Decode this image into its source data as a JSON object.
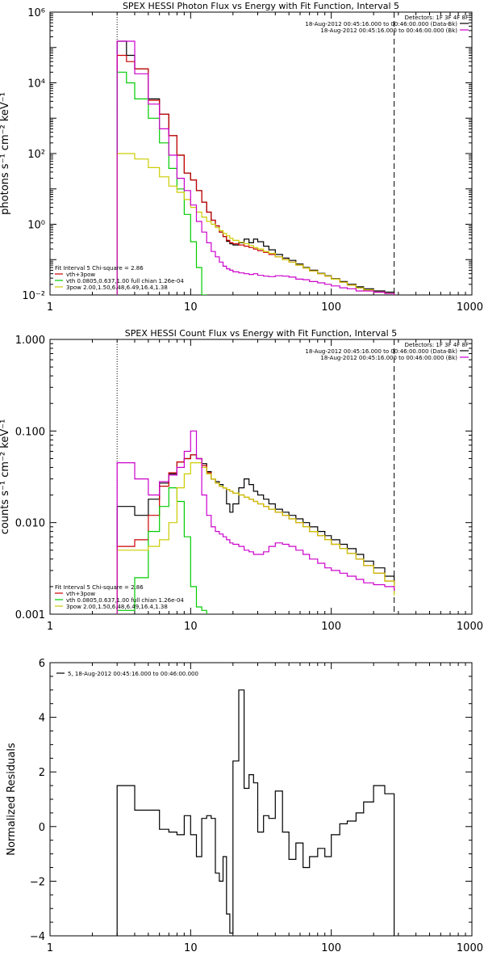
{
  "chart_data": [
    {
      "type": "line",
      "title": "SPEX HESSI Photon Flux vs Energy with Fit Function, Interval 5",
      "ylabel": "photons s⁻¹ cm⁻² keV⁻¹",
      "xscale": "log",
      "yscale": "log",
      "xlim": [
        1,
        1000
      ],
      "ylim": [
        0.01,
        1000000
      ],
      "xticks": [
        {
          "v": 1,
          "label": "1"
        },
        {
          "v": 10,
          "label": "10"
        },
        {
          "v": 100,
          "label": "100"
        },
        {
          "v": 1000,
          "label": "1000"
        }
      ],
      "yticks": [
        {
          "v": 0.01,
          "label": "10⁻²"
        },
        {
          "v": 1,
          "label": "10⁰"
        },
        {
          "v": 100,
          "label": "10²"
        },
        {
          "v": 10000,
          "label": "10⁴"
        },
        {
          "v": 1000000,
          "label": "10⁶"
        }
      ],
      "vlines": [
        {
          "x": 3,
          "style": "dotted"
        },
        {
          "x": 280,
          "style": "dashed"
        }
      ],
      "legend_top": {
        "placement": "top-right",
        "header": "Detectors: 1F 3F 4F 8F",
        "entries": [
          {
            "text": "18-Aug-2012 00:45:16.000 to 00:46:00.000 (Data-Bk)",
            "color": "#000000"
          },
          {
            "text": "18-Aug-2012 00:45:16.000 to 00:46:00.000 (Bk)",
            "color": "#cc00cc"
          }
        ]
      },
      "legend_bottom": {
        "placement": "bottom-left",
        "header": "Fit Interval 5   Chi-square = 2.86",
        "entries": [
          {
            "text": "vth+3pow",
            "color": "#cc0000"
          },
          {
            "text": "vth 0.0805,0.637,1.00  full chian 1.26e-04",
            "color": "#00cc00"
          },
          {
            "text": "3pow 2.00,1.50,6.48,6.49,16.4,1.38",
            "color": "#cccc00"
          }
        ]
      },
      "series": [
        {
          "color": "#000000",
          "edges": [
            3,
            3.5,
            4,
            5,
            6,
            7,
            8,
            9,
            10,
            11,
            12,
            13,
            14,
            15,
            16,
            17,
            18,
            19,
            20,
            22,
            24,
            26,
            28,
            30,
            33,
            36,
            40,
            45,
            50,
            56,
            63,
            70,
            80,
            90,
            100,
            115,
            130,
            150,
            170,
            200,
            240,
            280
          ],
          "values": [
            150000,
            60000,
            25000,
            3500,
            1300,
            320,
            90,
            28,
            18,
            9,
            4.2,
            2.2,
            1.3,
            0.9,
            0.6,
            0.45,
            0.33,
            0.28,
            0.26,
            0.3,
            0.38,
            0.3,
            0.38,
            0.32,
            0.24,
            0.19,
            0.14,
            0.11,
            0.095,
            0.075,
            0.06,
            0.05,
            0.041,
            0.035,
            0.029,
            0.024,
            0.02,
            0.017,
            0.015,
            0.013,
            0.012
          ]
        },
        {
          "color": "#cc0000",
          "edges": [
            3,
            3.5,
            4,
            5,
            6,
            7,
            8,
            9,
            10,
            11,
            12,
            13,
            14,
            15,
            16,
            17,
            18,
            19,
            20,
            22,
            24,
            26,
            28,
            30,
            33,
            36,
            40,
            45,
            50,
            56,
            63,
            70,
            80,
            90,
            100,
            115,
            130,
            150,
            170,
            200,
            240,
            280
          ],
          "values": [
            60000,
            40000,
            25000,
            3200,
            1300,
            320,
            90,
            28,
            18,
            9,
            4.2,
            2.2,
            1.3,
            0.9,
            0.6,
            0.45,
            0.35,
            0.3,
            0.28,
            0.26,
            0.24,
            0.22,
            0.2,
            0.18,
            0.16,
            0.14,
            0.12,
            0.1,
            0.085,
            0.07,
            0.058,
            0.048,
            0.04,
            0.034,
            0.028,
            0.023,
            0.019,
            0.016,
            0.014,
            0.012,
            0.011
          ]
        },
        {
          "color": "#00cc00",
          "edges": [
            3,
            3.5,
            4,
            5,
            6,
            7,
            8,
            9,
            10,
            11,
            12,
            13
          ],
          "values": [
            20000,
            10000,
            3500,
            1000,
            200,
            38,
            10,
            1.9,
            0.32,
            0.06,
            0.01
          ]
        },
        {
          "color": "#cccc00",
          "edges": [
            3,
            4,
            5,
            6,
            7,
            8,
            9,
            10,
            11,
            12,
            13,
            14,
            15,
            16,
            17,
            18,
            19,
            20,
            22,
            24,
            26,
            28,
            30,
            33,
            36,
            40,
            45,
            50,
            56,
            63,
            70,
            80,
            90,
            100,
            115,
            130,
            150,
            170,
            200,
            240,
            280
          ],
          "values": [
            100,
            70,
            40,
            22,
            12,
            8,
            5,
            3,
            2.2,
            1.6,
            1.2,
            1,
            0.8,
            0.66,
            0.55,
            0.47,
            0.4,
            0.35,
            0.31,
            0.28,
            0.25,
            0.22,
            0.2,
            0.17,
            0.15,
            0.12,
            0.1,
            0.085,
            0.07,
            0.058,
            0.048,
            0.04,
            0.034,
            0.028,
            0.023,
            0.019,
            0.016,
            0.014,
            0.012,
            0.011
          ]
        },
        {
          "color": "#cc00cc",
          "edges": [
            3,
            4,
            5,
            6,
            7,
            8,
            9,
            10,
            11,
            12,
            13,
            14,
            15,
            16,
            17,
            18,
            19,
            20,
            22,
            24,
            26,
            28,
            30,
            33,
            36,
            40,
            45,
            50,
            56,
            63,
            70,
            80,
            90,
            100,
            115,
            130,
            150,
            170,
            200,
            240,
            280
          ],
          "values": [
            150000,
            18000,
            2500,
            500,
            90,
            20,
            9,
            3.5,
            1.2,
            0.6,
            0.3,
            0.17,
            0.12,
            0.085,
            0.065,
            0.055,
            0.05,
            0.045,
            0.042,
            0.04,
            0.038,
            0.04,
            0.036,
            0.034,
            0.033,
            0.035,
            0.034,
            0.032,
            0.028,
            0.027,
            0.024,
            0.022,
            0.02,
            0.018,
            0.016,
            0.015,
            0.013,
            0.013,
            0.012,
            0.011
          ]
        }
      ]
    },
    {
      "type": "line",
      "title": "SPEX HESSI Count Flux vs Energy with Fit Function, Interval 5",
      "ylabel": "counts s⁻¹ cm⁻² keV⁻¹",
      "xscale": "log",
      "yscale": "log",
      "xlim": [
        1,
        1000
      ],
      "ylim": [
        0.001,
        1
      ],
      "xticks": [
        {
          "v": 1,
          "label": "1"
        },
        {
          "v": 10,
          "label": "10"
        },
        {
          "v": 100,
          "label": "100"
        },
        {
          "v": 1000,
          "label": "1000"
        }
      ],
      "yticks": [
        {
          "v": 0.001,
          "label": "0.001"
        },
        {
          "v": 0.01,
          "label": "0.010"
        },
        {
          "v": 0.1,
          "label": "0.100"
        },
        {
          "v": 1,
          "label": "1.000"
        }
      ],
      "vlines": [
        {
          "x": 3,
          "style": "dotted"
        },
        {
          "x": 280,
          "style": "dashed"
        }
      ],
      "legend_top": {
        "placement": "top-right",
        "header": "Detectors: 1F 3F 4F 8F",
        "entries": [
          {
            "text": "18-Aug-2012 00:45:16.000 to 00:46:00.000 (Data-Bk)",
            "color": "#000000"
          },
          {
            "text": "18-Aug-2012 00:45:16.000 to 00:46:00.000 (Bk)",
            "color": "#cc00cc"
          }
        ]
      },
      "legend_bottom": {
        "placement": "bottom-left",
        "header": "Fit Interval 5   Chi-square = 2.86",
        "entries": [
          {
            "text": "vth+3pow",
            "color": "#cc0000"
          },
          {
            "text": "vth 0.0805,0.637,1.00  full chian 1.26e-04",
            "color": "#00cc00"
          },
          {
            "text": "3pow 2.00,1.50,6.48,6.49,16.4,1.38",
            "color": "#cccc00"
          }
        ]
      },
      "series": [
        {
          "color": "#000000",
          "edges": [
            3,
            4,
            5,
            6,
            7,
            8,
            9,
            10,
            11,
            12,
            13,
            14,
            15,
            16,
            17,
            18,
            19,
            20,
            22,
            24,
            26,
            28,
            30,
            33,
            36,
            40,
            45,
            50,
            56,
            63,
            70,
            80,
            90,
            100,
            115,
            130,
            150,
            170,
            200,
            240,
            280
          ],
          "values": [
            0.015,
            0.012,
            0.018,
            0.027,
            0.034,
            0.046,
            0.05,
            0.055,
            0.05,
            0.044,
            0.036,
            0.03,
            0.028,
            0.026,
            0.024,
            0.016,
            0.013,
            0.016,
            0.024,
            0.03,
            0.026,
            0.022,
            0.02,
            0.018,
            0.016,
            0.014,
            0.013,
            0.012,
            0.011,
            0.01,
            0.009,
            0.008,
            0.0072,
            0.0065,
            0.0058,
            0.0052,
            0.0045,
            0.0038,
            0.0032,
            0.0026,
            0.0022
          ]
        },
        {
          "color": "#cc0000",
          "edges": [
            3,
            4,
            5,
            6,
            7,
            8,
            9,
            10,
            11,
            12,
            13,
            14,
            15,
            16,
            17,
            18,
            19,
            20,
            22,
            24,
            26,
            28,
            30,
            33,
            36,
            40,
            45,
            50,
            56,
            63,
            70,
            80,
            90,
            100,
            115,
            130,
            150,
            170,
            200,
            240,
            280
          ],
          "values": [
            0.0055,
            0.0065,
            0.012,
            0.025,
            0.035,
            0.046,
            0.05,
            0.055,
            0.05,
            0.042,
            0.035,
            0.03,
            0.027,
            0.025,
            0.024,
            0.023,
            0.022,
            0.021,
            0.02,
            0.019,
            0.018,
            0.017,
            0.016,
            0.015,
            0.014,
            0.013,
            0.012,
            0.011,
            0.01,
            0.009,
            0.008,
            0.0072,
            0.0065,
            0.0058,
            0.0052,
            0.0046,
            0.004,
            0.0034,
            0.0028,
            0.0023,
            0.0018
          ]
        },
        {
          "color": "#00cc00",
          "edges": [
            3,
            4,
            5,
            6,
            7,
            8,
            9,
            10,
            11,
            12,
            13
          ],
          "values": [
            0.0011,
            0.0025,
            0.008,
            0.015,
            0.024,
            0.017,
            0.007,
            0.002,
            0.0012,
            0.0011
          ]
        },
        {
          "color": "#cccc00",
          "edges": [
            3,
            4,
            5,
            6,
            7,
            8,
            9,
            10,
            11,
            12,
            13,
            14,
            15,
            16,
            17,
            18,
            19,
            20,
            22,
            24,
            26,
            28,
            30,
            33,
            36,
            40,
            45,
            50,
            56,
            63,
            70,
            80,
            90,
            100,
            115,
            130,
            150,
            170,
            200,
            240,
            280
          ],
          "values": [
            0.005,
            0.005,
            0.0055,
            0.0065,
            0.01,
            0.024,
            0.034,
            0.045,
            0.045,
            0.04,
            0.034,
            0.03,
            0.027,
            0.025,
            0.024,
            0.023,
            0.022,
            0.021,
            0.02,
            0.019,
            0.018,
            0.017,
            0.016,
            0.015,
            0.014,
            0.013,
            0.012,
            0.011,
            0.01,
            0.009,
            0.008,
            0.0072,
            0.0065,
            0.0058,
            0.0052,
            0.0046,
            0.004,
            0.0034,
            0.0028,
            0.0023,
            0.0016
          ]
        },
        {
          "color": "#cc00cc",
          "edges": [
            3,
            4,
            5,
            6,
            7,
            8,
            9,
            10,
            11,
            12,
            13,
            14,
            15,
            16,
            17,
            18,
            19,
            20,
            22,
            24,
            26,
            28,
            30,
            33,
            36,
            40,
            45,
            50,
            56,
            63,
            70,
            80,
            90,
            100,
            115,
            130,
            150,
            170,
            200,
            240,
            280
          ],
          "values": [
            0.045,
            0.03,
            0.02,
            0.028,
            0.033,
            0.04,
            0.06,
            0.1,
            0.05,
            0.02,
            0.012,
            0.009,
            0.008,
            0.0075,
            0.007,
            0.0065,
            0.006,
            0.0058,
            0.0055,
            0.005,
            0.0048,
            0.0045,
            0.0045,
            0.0048,
            0.0055,
            0.006,
            0.0058,
            0.0055,
            0.005,
            0.0045,
            0.004,
            0.0036,
            0.0032,
            0.003,
            0.0028,
            0.0026,
            0.0024,
            0.0022,
            0.0021,
            0.002,
            0.0018
          ]
        }
      ]
    },
    {
      "type": "line",
      "title": "",
      "ylabel": "Normalized Residuals",
      "xscale": "log",
      "yscale": "linear",
      "xlim": [
        1,
        1000
      ],
      "ylim": [
        -4,
        6
      ],
      "xticks": [
        {
          "v": 1,
          "label": "1"
        },
        {
          "v": 10,
          "label": "10"
        },
        {
          "v": 100,
          "label": "100"
        },
        {
          "v": 1000,
          "label": "1000"
        }
      ],
      "yticks": [
        {
          "v": -4,
          "label": "−4"
        },
        {
          "v": -2,
          "label": "−2"
        },
        {
          "v": 0,
          "label": "0"
        },
        {
          "v": 2,
          "label": "2"
        },
        {
          "v": 4,
          "label": "4"
        },
        {
          "v": 6,
          "label": "6"
        }
      ],
      "legend": {
        "placement": "top-left",
        "entries": [
          {
            "text": "5, 18-Aug-2012 00:45:16.000 to 00:46:00.000",
            "color": "#000000"
          }
        ]
      },
      "series": [
        {
          "color": "#000000",
          "edges": [
            3,
            4,
            5,
            6,
            7,
            7.5,
            8,
            9,
            10,
            11,
            12,
            13,
            14,
            15,
            16,
            17,
            18,
            19,
            20,
            22,
            24,
            26,
            28,
            30,
            33,
            36,
            40,
            45,
            50,
            56,
            63,
            70,
            80,
            90,
            100,
            115,
            130,
            150,
            170,
            200,
            240,
            280
          ],
          "values": [
            1.5,
            0.6,
            0.6,
            -0.1,
            -0.2,
            -0.2,
            -0.3,
            0.4,
            -0.3,
            -1.1,
            0.3,
            0.4,
            0.3,
            -1.7,
            -2.0,
            -1.1,
            -3.2,
            -3.9,
            2.4,
            5.0,
            1.4,
            1.9,
            1.6,
            -0.2,
            0.4,
            0.3,
            1.3,
            -0.2,
            -1.2,
            -0.6,
            -1.5,
            -1.1,
            -0.8,
            -1.1,
            -0.3,
            0.1,
            0.2,
            0.5,
            0.9,
            1.5,
            1.2
          ]
        }
      ]
    }
  ]
}
